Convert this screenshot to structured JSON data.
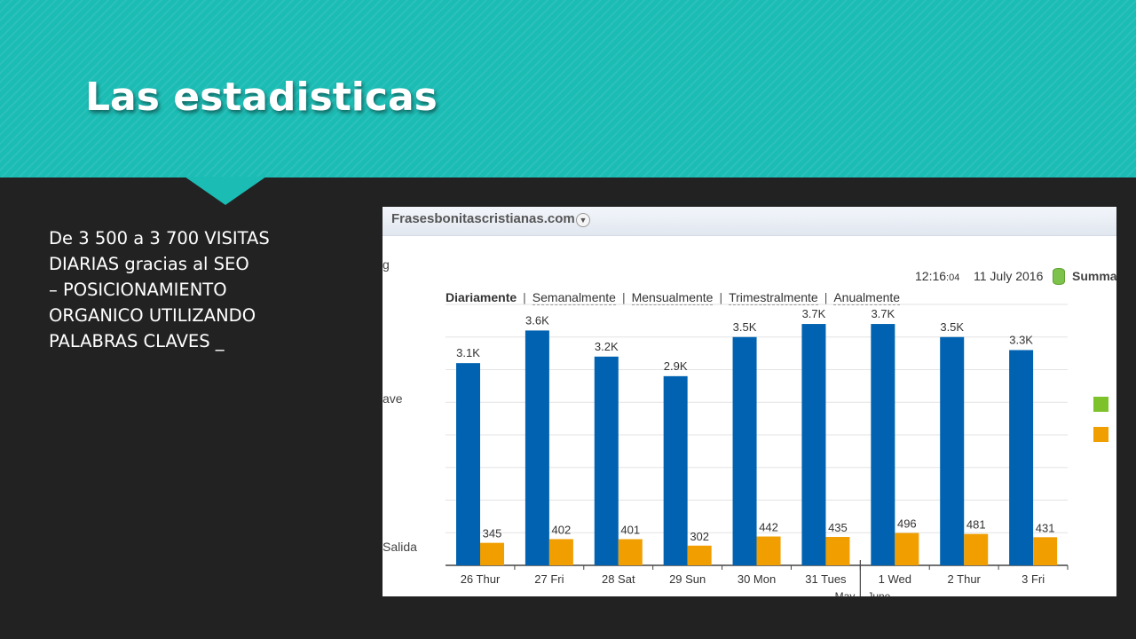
{
  "slide": {
    "title": "Las estadisticas",
    "body_lines": [
      "De 3 500 a 3 700 VISITAS",
      "DIARIAS gracias al SEO",
      "– POSICIONAMIENTO",
      "ORGANICO UTILIZANDO",
      "PALABRAS CLAVES _"
    ]
  },
  "screenshot": {
    "site": "Frasesbonitascristianas.com",
    "time_main": "12:16",
    "time_sec": ":04",
    "date": "11 July 2016",
    "summary": "Summa",
    "periods": [
      "Diariamente",
      "Semanalmente",
      "Mensualmente",
      "Trimestralmente",
      "Anualmente"
    ],
    "active_period": "Diariamente",
    "side_fragments": [
      "g",
      "ave",
      "Salida"
    ],
    "month_labels": [
      "May",
      "June"
    ]
  },
  "colors": {
    "header": "#1bbcb4",
    "background": "#222222",
    "bar_primary": "#0062b0",
    "bar_secondary": "#f09e00",
    "legend_green": "#7dc22b",
    "legend_orange": "#f09e00"
  },
  "chart_data": {
    "type": "bar",
    "categories": [
      "26 Thur",
      "27 Fri",
      "28 Sat",
      "29 Sun",
      "30 Mon",
      "31 Tues",
      "1 Wed",
      "2 Thur",
      "3 Fri"
    ],
    "series": [
      {
        "values": [
          3100,
          3600,
          3200,
          2900,
          3500,
          3700,
          3700,
          3500,
          3300
        ],
        "labels": [
          "3.1K",
          "3.6K",
          "3.2K",
          "2.9K",
          "3.5K",
          "3.7K",
          "3.7K",
          "3.5K",
          "3.3K"
        ]
      },
      {
        "values": [
          345,
          402,
          401,
          302,
          442,
          435,
          496,
          481,
          431
        ],
        "labels": [
          "345",
          "402",
          "401",
          "302",
          "442",
          "435",
          "496",
          "481",
          "431"
        ]
      }
    ],
    "ylim": [
      0,
      4000
    ],
    "grid": true,
    "month_divider_after_index": 5
  }
}
